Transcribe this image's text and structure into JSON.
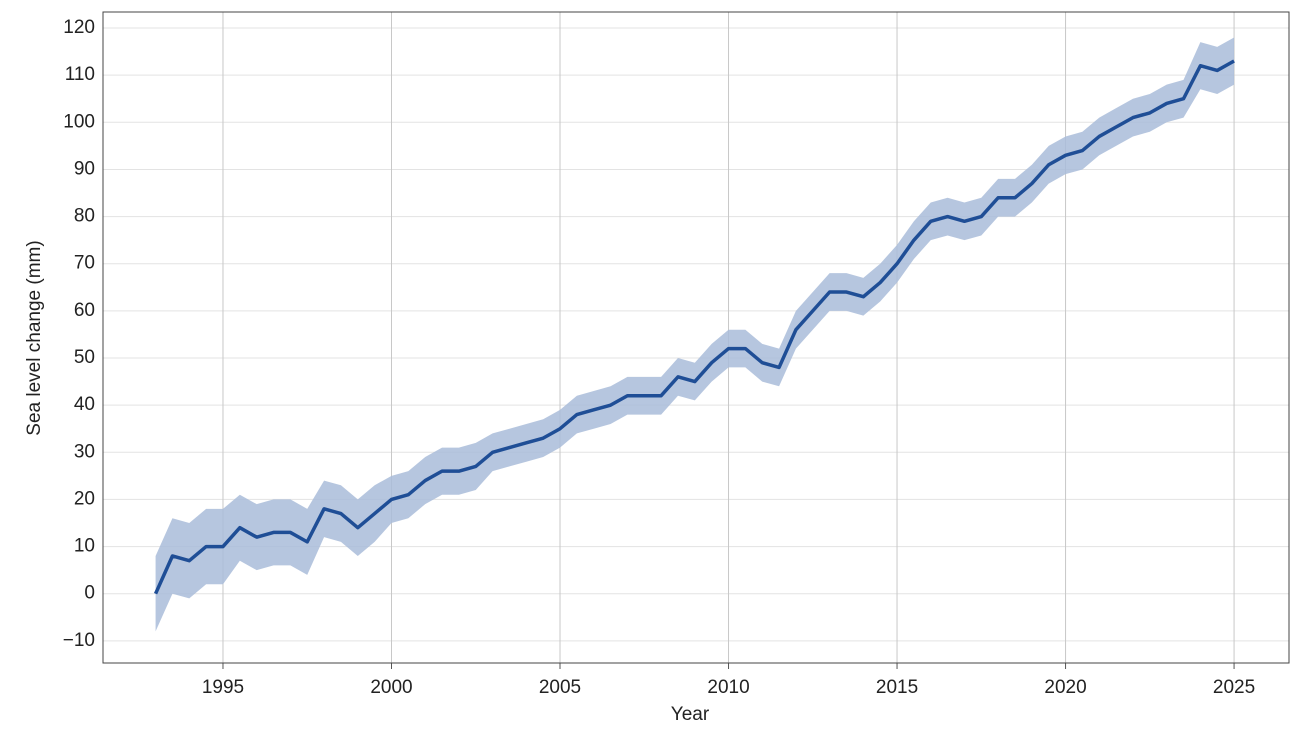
{
  "chart_data": {
    "type": "line",
    "xlabel": "Year",
    "ylabel": "Sea level change (mm)",
    "x": [
      1993.0,
      1993.5,
      1994.0,
      1994.5,
      1995.0,
      1995.5,
      1996.0,
      1996.5,
      1997.0,
      1997.5,
      1998.0,
      1998.5,
      1999.0,
      1999.5,
      2000.0,
      2000.5,
      2001.0,
      2001.5,
      2002.0,
      2002.5,
      2003.0,
      2003.5,
      2004.0,
      2004.5,
      2005.0,
      2005.5,
      2006.0,
      2006.5,
      2007.0,
      2007.5,
      2008.0,
      2008.5,
      2009.0,
      2009.5,
      2010.0,
      2010.5,
      2011.0,
      2011.5,
      2012.0,
      2012.5,
      2013.0,
      2013.5,
      2014.0,
      2014.5,
      2015.0,
      2015.5,
      2016.0,
      2016.5,
      2017.0,
      2017.5,
      2018.0,
      2018.5,
      2019.0,
      2019.5,
      2020.0,
      2020.5,
      2021.0,
      2021.5,
      2022.0,
      2022.5,
      2023.0,
      2023.5,
      2024.0,
      2024.5,
      2025.0
    ],
    "values": [
      0,
      8,
      7,
      10,
      10,
      14,
      12,
      13,
      13,
      11,
      18,
      17,
      14,
      17,
      20,
      21,
      24,
      26,
      26,
      27,
      30,
      31,
      32,
      33,
      35,
      38,
      39,
      40,
      42,
      42,
      42,
      46,
      45,
      49,
      52,
      52,
      49,
      48,
      56,
      60,
      64,
      64,
      63,
      66,
      70,
      75,
      79,
      80,
      79,
      80,
      84,
      84,
      87,
      91,
      93,
      94,
      97,
      99,
      101,
      102,
      104,
      105,
      112,
      111,
      113
    ],
    "error": [
      8,
      8,
      8,
      8,
      8,
      7,
      7,
      7,
      7,
      7,
      6,
      6,
      6,
      6,
      5,
      5,
      5,
      5,
      5,
      5,
      4,
      4,
      4,
      4,
      4,
      4,
      4,
      4,
      4,
      4,
      4,
      4,
      4,
      4,
      4,
      4,
      4,
      4,
      4,
      4,
      4,
      4,
      4,
      4,
      4,
      4,
      4,
      4,
      4,
      4,
      4,
      4,
      4,
      4,
      4,
      4,
      4,
      4,
      4,
      4,
      4,
      4,
      5,
      5,
      5
    ],
    "color": "#1f4e96",
    "band_color": "#a9bcd9",
    "xlim": [
      1991.44,
      2026.63
    ],
    "xticks": [
      1995,
      2000,
      2005,
      2010,
      2015,
      2020,
      2025
    ],
    "ylim": [
      -14.7,
      123.4
    ],
    "yticks": [
      {
        "value": -10,
        "label": "−10"
      },
      0,
      10,
      20,
      30,
      40,
      50,
      60,
      70,
      80,
      90,
      100,
      110,
      120
    ],
    "grid": true
  }
}
